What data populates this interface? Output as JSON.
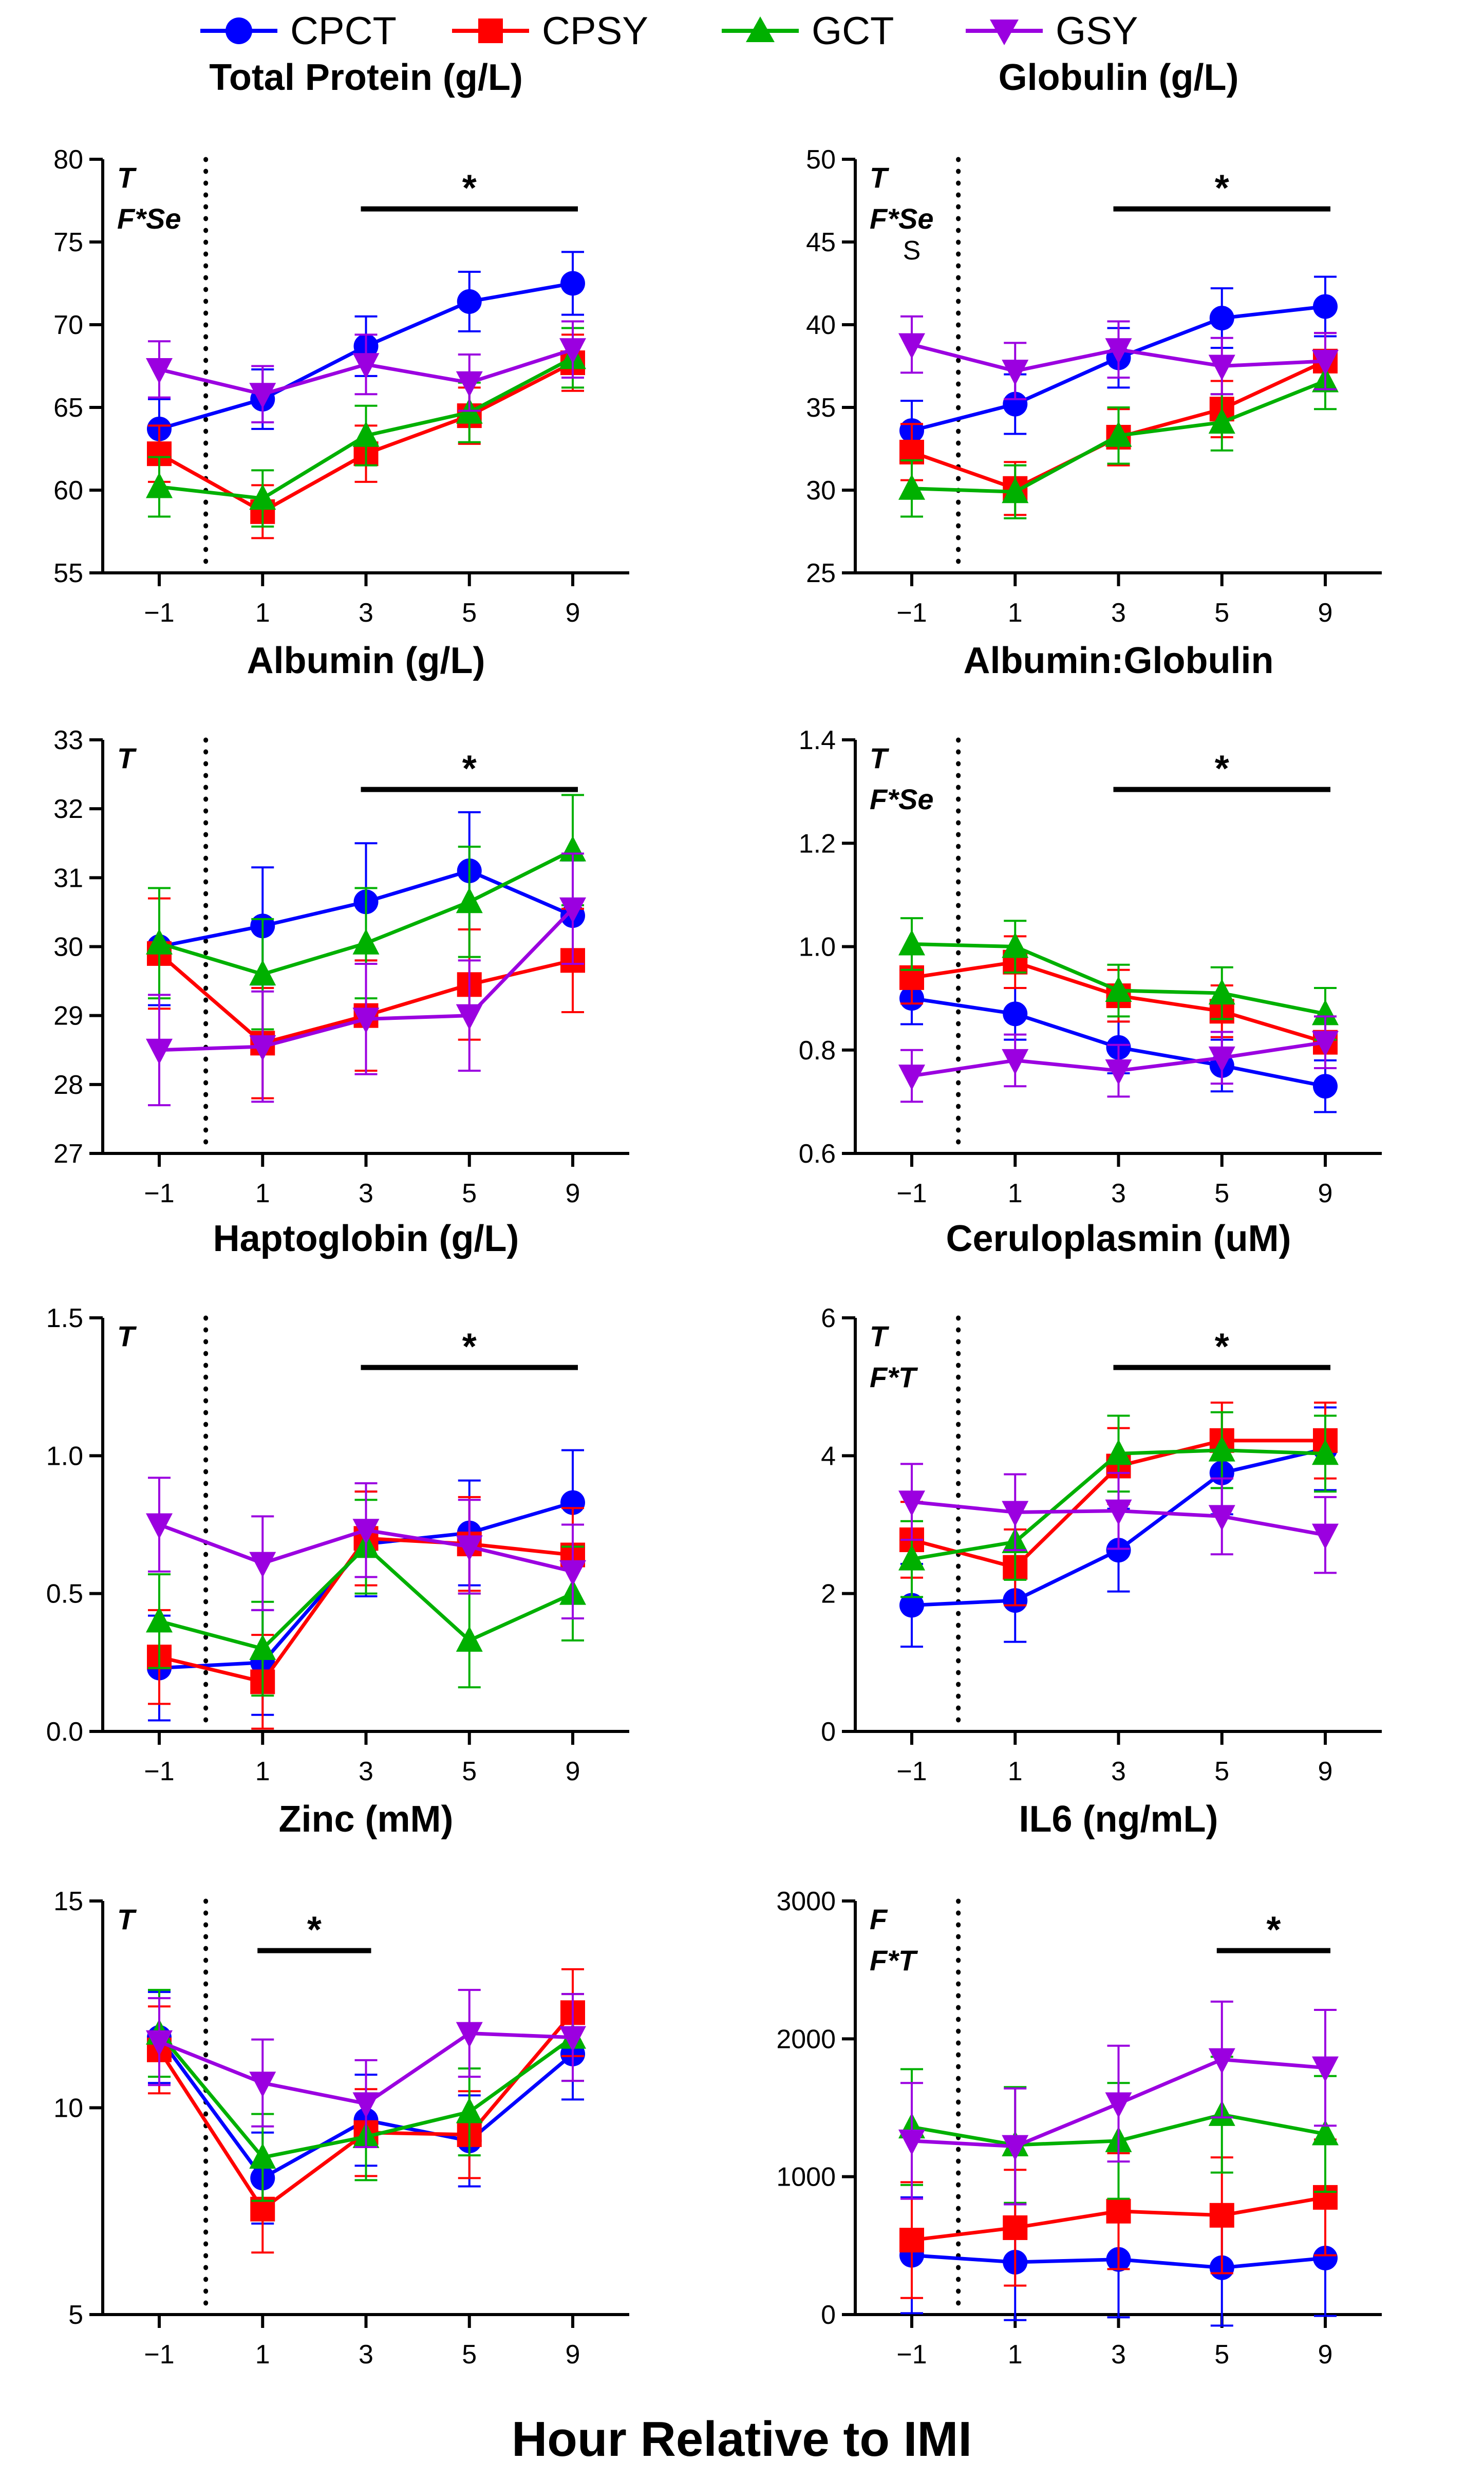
{
  "figure": {
    "xlabel": "Hour Relative to IMI",
    "x_positions": [
      -1,
      1,
      3,
      5,
      9
    ],
    "tick_labels": [
      "−1",
      "1",
      "3",
      "5",
      "9"
    ]
  },
  "legend": {
    "items": [
      {
        "name": "CPCT",
        "color": "#0000FF",
        "marker": "circle"
      },
      {
        "name": "CPSY",
        "color": "#FF0000",
        "marker": "square"
      },
      {
        "name": "GCT",
        "color": "#00B000",
        "marker": "triangle-up"
      },
      {
        "name": "GSY",
        "color": "#9B00E0",
        "marker": "triangle-down"
      }
    ]
  },
  "chart_data": [
    {
      "type": "line",
      "title": "Total Protein (g/L)",
      "ylim": [
        55,
        80
      ],
      "yticks": [
        55,
        60,
        65,
        70,
        75,
        80
      ],
      "ytick_labels": [
        "55",
        "60",
        "65",
        "70",
        "75",
        "80"
      ],
      "annotations": [
        "T",
        "F*Se"
      ],
      "sig_span": [
        3,
        9
      ],
      "sig_mark": "*",
      "extra_marks": [],
      "series": [
        {
          "name": "CPCT",
          "values": [
            63.7,
            65.5,
            68.7,
            71.4,
            72.5
          ],
          "errors": [
            1.8,
            1.8,
            1.8,
            1.8,
            1.9
          ]
        },
        {
          "name": "CPSY",
          "values": [
            62.2,
            58.7,
            62.2,
            64.5,
            67.7
          ],
          "errors": [
            1.7,
            1.6,
            1.7,
            1.7,
            1.7
          ]
        },
        {
          "name": "GCT",
          "values": [
            60.2,
            59.5,
            63.3,
            64.7,
            68.0
          ],
          "errors": [
            1.8,
            1.7,
            1.8,
            1.8,
            1.8
          ]
        },
        {
          "name": "GSY",
          "values": [
            67.3,
            65.8,
            67.6,
            66.5,
            68.5
          ],
          "errors": [
            1.7,
            1.7,
            1.8,
            1.7,
            1.7
          ]
        }
      ]
    },
    {
      "type": "line",
      "title": "Globulin (g/L)",
      "ylim": [
        25,
        50
      ],
      "yticks": [
        25,
        30,
        35,
        40,
        45,
        50
      ],
      "ytick_labels": [
        "25",
        "30",
        "35",
        "40",
        "45",
        "50"
      ],
      "annotations": [
        "T",
        "F*Se"
      ],
      "sig_span": [
        3,
        9
      ],
      "sig_mark": "*",
      "extra_marks": [
        {
          "x": -1,
          "y": 44.5,
          "text": "S"
        }
      ],
      "series": [
        {
          "name": "CPCT",
          "values": [
            33.6,
            35.2,
            38.0,
            40.4,
            41.1
          ],
          "errors": [
            1.8,
            1.8,
            1.8,
            1.8,
            1.8
          ]
        },
        {
          "name": "CPSY",
          "values": [
            32.3,
            30.1,
            33.2,
            34.9,
            37.8
          ],
          "errors": [
            1.7,
            1.6,
            1.7,
            1.7,
            1.7
          ]
        },
        {
          "name": "GCT",
          "values": [
            30.1,
            29.9,
            33.3,
            34.1,
            36.6
          ],
          "errors": [
            1.7,
            1.6,
            1.7,
            1.7,
            1.7
          ]
        },
        {
          "name": "GSY",
          "values": [
            38.8,
            37.2,
            38.5,
            37.5,
            37.8
          ],
          "errors": [
            1.7,
            1.7,
            1.7,
            1.7,
            1.7
          ]
        }
      ]
    },
    {
      "type": "line",
      "title": "Albumin (g/L)",
      "ylim": [
        27,
        33
      ],
      "yticks": [
        27,
        28,
        29,
        30,
        31,
        32,
        33
      ],
      "ytick_labels": [
        "27",
        "28",
        "29",
        "30",
        "31",
        "32",
        "33"
      ],
      "annotations": [
        "T"
      ],
      "sig_span": [
        3,
        9
      ],
      "sig_mark": "*",
      "extra_marks": [],
      "series": [
        {
          "name": "CPCT",
          "values": [
            30.0,
            30.3,
            30.65,
            31.1,
            30.45
          ],
          "errors": [
            0.85,
            0.85,
            0.85,
            0.85,
            0.8
          ]
        },
        {
          "name": "CPSY",
          "values": [
            29.9,
            28.6,
            29.0,
            29.45,
            29.8
          ],
          "errors": [
            0.8,
            0.8,
            0.8,
            0.8,
            0.75
          ]
        },
        {
          "name": "GCT",
          "values": [
            30.05,
            29.6,
            30.05,
            30.65,
            31.4
          ],
          "errors": [
            0.8,
            0.8,
            0.8,
            0.8,
            0.8
          ]
        },
        {
          "name": "GSY",
          "values": [
            28.5,
            28.55,
            28.95,
            29.0,
            30.55
          ],
          "errors": [
            0.8,
            0.8,
            0.8,
            0.8,
            0.8
          ]
        }
      ]
    },
    {
      "type": "line",
      "title": "Albumin:Globulin",
      "ylim": [
        0.6,
        1.4
      ],
      "yticks": [
        0.6,
        0.8,
        1.0,
        1.2,
        1.4
      ],
      "ytick_labels": [
        "0.6",
        "0.8",
        "1.0",
        "1.2",
        "1.4"
      ],
      "annotations": [
        "T",
        "F*Se"
      ],
      "sig_span": [
        3,
        9
      ],
      "sig_mark": "*",
      "extra_marks": [],
      "series": [
        {
          "name": "CPCT",
          "values": [
            0.9,
            0.87,
            0.805,
            0.77,
            0.73
          ],
          "errors": [
            0.05,
            0.05,
            0.05,
            0.05,
            0.05
          ]
        },
        {
          "name": "CPSY",
          "values": [
            0.94,
            0.97,
            0.905,
            0.875,
            0.815
          ],
          "errors": [
            0.05,
            0.05,
            0.05,
            0.05,
            0.05
          ]
        },
        {
          "name": "GCT",
          "values": [
            1.005,
            1.0,
            0.915,
            0.91,
            0.87
          ],
          "errors": [
            0.05,
            0.05,
            0.05,
            0.05,
            0.05
          ]
        },
        {
          "name": "GSY",
          "values": [
            0.75,
            0.78,
            0.76,
            0.785,
            0.815
          ],
          "errors": [
            0.05,
            0.05,
            0.05,
            0.05,
            0.05
          ]
        }
      ]
    },
    {
      "type": "line",
      "title": "Haptoglobin (g/L)",
      "ylim": [
        0.0,
        1.5
      ],
      "yticks": [
        0.0,
        0.5,
        1.0,
        1.5
      ],
      "ytick_labels": [
        "0.0",
        "0.5",
        "1.0",
        "1.5"
      ],
      "annotations": [
        "T"
      ],
      "sig_span": [
        3,
        9
      ],
      "sig_mark": "*",
      "extra_marks": [],
      "series": [
        {
          "name": "CPCT",
          "values": [
            0.23,
            0.25,
            0.68,
            0.72,
            0.83
          ],
          "errors": [
            0.19,
            0.19,
            0.19,
            0.19,
            0.19
          ]
        },
        {
          "name": "CPSY",
          "values": [
            0.27,
            0.18,
            0.7,
            0.68,
            0.64
          ],
          "errors": [
            0.17,
            0.17,
            0.17,
            0.17,
            0.17
          ]
        },
        {
          "name": "GCT",
          "values": [
            0.4,
            0.3,
            0.67,
            0.33,
            0.5
          ],
          "errors": [
            0.17,
            0.17,
            0.17,
            0.17,
            0.17
          ]
        },
        {
          "name": "GSY",
          "values": [
            0.75,
            0.61,
            0.73,
            0.67,
            0.58
          ],
          "errors": [
            0.17,
            0.17,
            0.17,
            0.17,
            0.17
          ]
        }
      ]
    },
    {
      "type": "line",
      "title": "Ceruloplasmin (uM)",
      "ylim": [
        0,
        6
      ],
      "yticks": [
        0,
        2,
        4,
        6
      ],
      "ytick_labels": [
        "0",
        "2",
        "4",
        "6"
      ],
      "annotations": [
        "T",
        "F*T"
      ],
      "sig_span": [
        3,
        9
      ],
      "sig_mark": "*",
      "extra_marks": [],
      "series": [
        {
          "name": "CPCT",
          "values": [
            1.83,
            1.9,
            2.63,
            3.75,
            4.1
          ],
          "errors": [
            0.6,
            0.6,
            0.6,
            0.6,
            0.6
          ]
        },
        {
          "name": "CPSY",
          "values": [
            2.78,
            2.38,
            3.85,
            4.22,
            4.22
          ],
          "errors": [
            0.55,
            0.55,
            0.55,
            0.55,
            0.55
          ]
        },
        {
          "name": "GCT",
          "values": [
            2.5,
            2.75,
            4.03,
            4.08,
            4.03
          ],
          "errors": [
            0.55,
            0.55,
            0.55,
            0.55,
            0.55
          ]
        },
        {
          "name": "GSY",
          "values": [
            3.33,
            3.18,
            3.2,
            3.12,
            2.85
          ],
          "errors": [
            0.55,
            0.55,
            0.55,
            0.55,
            0.55
          ]
        }
      ]
    },
    {
      "type": "line",
      "title": "Zinc (mM)",
      "ylim": [
        5,
        15
      ],
      "yticks": [
        5,
        10,
        15
      ],
      "ytick_labels": [
        "5",
        "10",
        "15"
      ],
      "annotations": [
        "T"
      ],
      "sig_span": [
        1,
        3
      ],
      "sig_mark": "*",
      "extra_marks": [],
      "series": [
        {
          "name": "CPCT",
          "values": [
            11.7,
            8.3,
            9.7,
            9.2,
            11.3
          ],
          "errors": [
            1.1,
            1.1,
            1.1,
            1.1,
            1.1
          ]
        },
        {
          "name": "CPSY",
          "values": [
            11.4,
            7.55,
            9.4,
            9.35,
            12.3
          ],
          "errors": [
            1.05,
            1.05,
            1.05,
            1.05,
            1.05
          ]
        },
        {
          "name": "GCT",
          "values": [
            11.8,
            8.8,
            9.3,
            9.9,
            11.7
          ],
          "errors": [
            1.05,
            1.05,
            1.05,
            1.05,
            1.05
          ]
        },
        {
          "name": "GSY",
          "values": [
            11.6,
            10.6,
            10.1,
            11.8,
            11.7
          ],
          "errors": [
            1.05,
            1.05,
            1.05,
            1.05,
            1.05
          ]
        }
      ]
    },
    {
      "type": "line",
      "title": "IL6 (ng/mL)",
      "ylim": [
        0,
        3000
      ],
      "yticks": [
        0,
        1000,
        2000,
        3000
      ],
      "ytick_labels": [
        "0",
        "1000",
        "2000",
        "3000"
      ],
      "annotations": [
        "F",
        "F*T"
      ],
      "sig_span": [
        5,
        9
      ],
      "sig_mark": "*",
      "extra_marks": [],
      "series": [
        {
          "name": "CPCT",
          "values": [
            430,
            380,
            400,
            340,
            410
          ],
          "errors": [
            420,
            420,
            420,
            420,
            420
          ]
        },
        {
          "name": "CPSY",
          "values": [
            540,
            630,
            750,
            720,
            850
          ],
          "errors": [
            420,
            420,
            420,
            420,
            420
          ]
        },
        {
          "name": "GCT",
          "values": [
            1360,
            1230,
            1260,
            1450,
            1310
          ],
          "errors": [
            420,
            420,
            420,
            420,
            420
          ]
        },
        {
          "name": "GSY",
          "values": [
            1260,
            1220,
            1530,
            1850,
            1790
          ],
          "errors": [
            420,
            420,
            420,
            420,
            420
          ]
        }
      ]
    }
  ]
}
